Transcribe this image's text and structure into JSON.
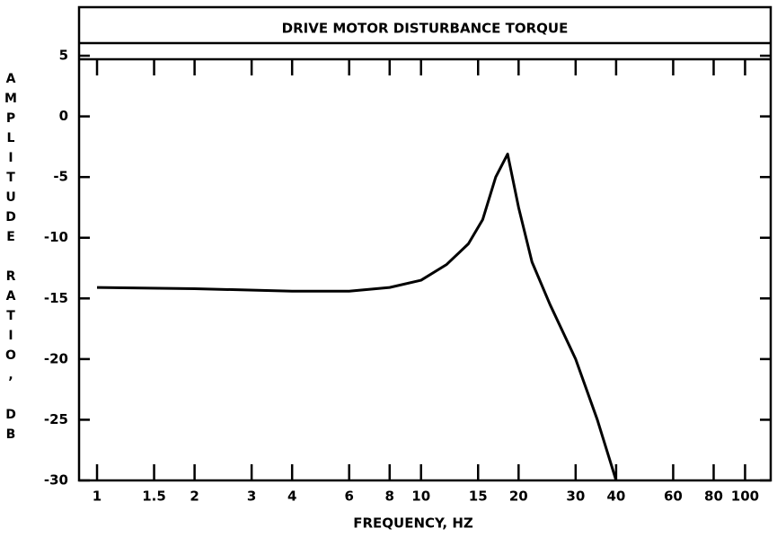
{
  "chart_data": {
    "type": "line",
    "title": "DRIVE MOTOR DISTURBANCE TORQUE",
    "x_label": "FREQUENCY, HZ",
    "y_label": "AMPLITUDE RATIO, DB",
    "log_x": true,
    "xlim": [
      0.88,
      120
    ],
    "ylim": [
      -30,
      9
    ],
    "xticks": [
      1,
      1.5,
      2,
      3,
      4,
      6,
      8,
      10,
      15,
      20,
      30,
      40,
      60,
      80,
      100
    ],
    "yticks": [
      5,
      0,
      -5,
      -10,
      -15,
      -20,
      -25,
      -30
    ],
    "grid": false,
    "series": [
      {
        "color": "#000000",
        "x": [
          1,
          2,
          4,
          6,
          8,
          10,
          12,
          14,
          15.5,
          17,
          18.5,
          20,
          22,
          25,
          30,
          35,
          40
        ],
        "values": [
          -14.1,
          -14.2,
          -14.4,
          -14.4,
          -14.1,
          -13.5,
          -12.2,
          -10.5,
          -8.5,
          -5,
          -3.1,
          -7.5,
          -12,
          -15.5,
          -20,
          -25,
          -30
        ]
      }
    ]
  }
}
